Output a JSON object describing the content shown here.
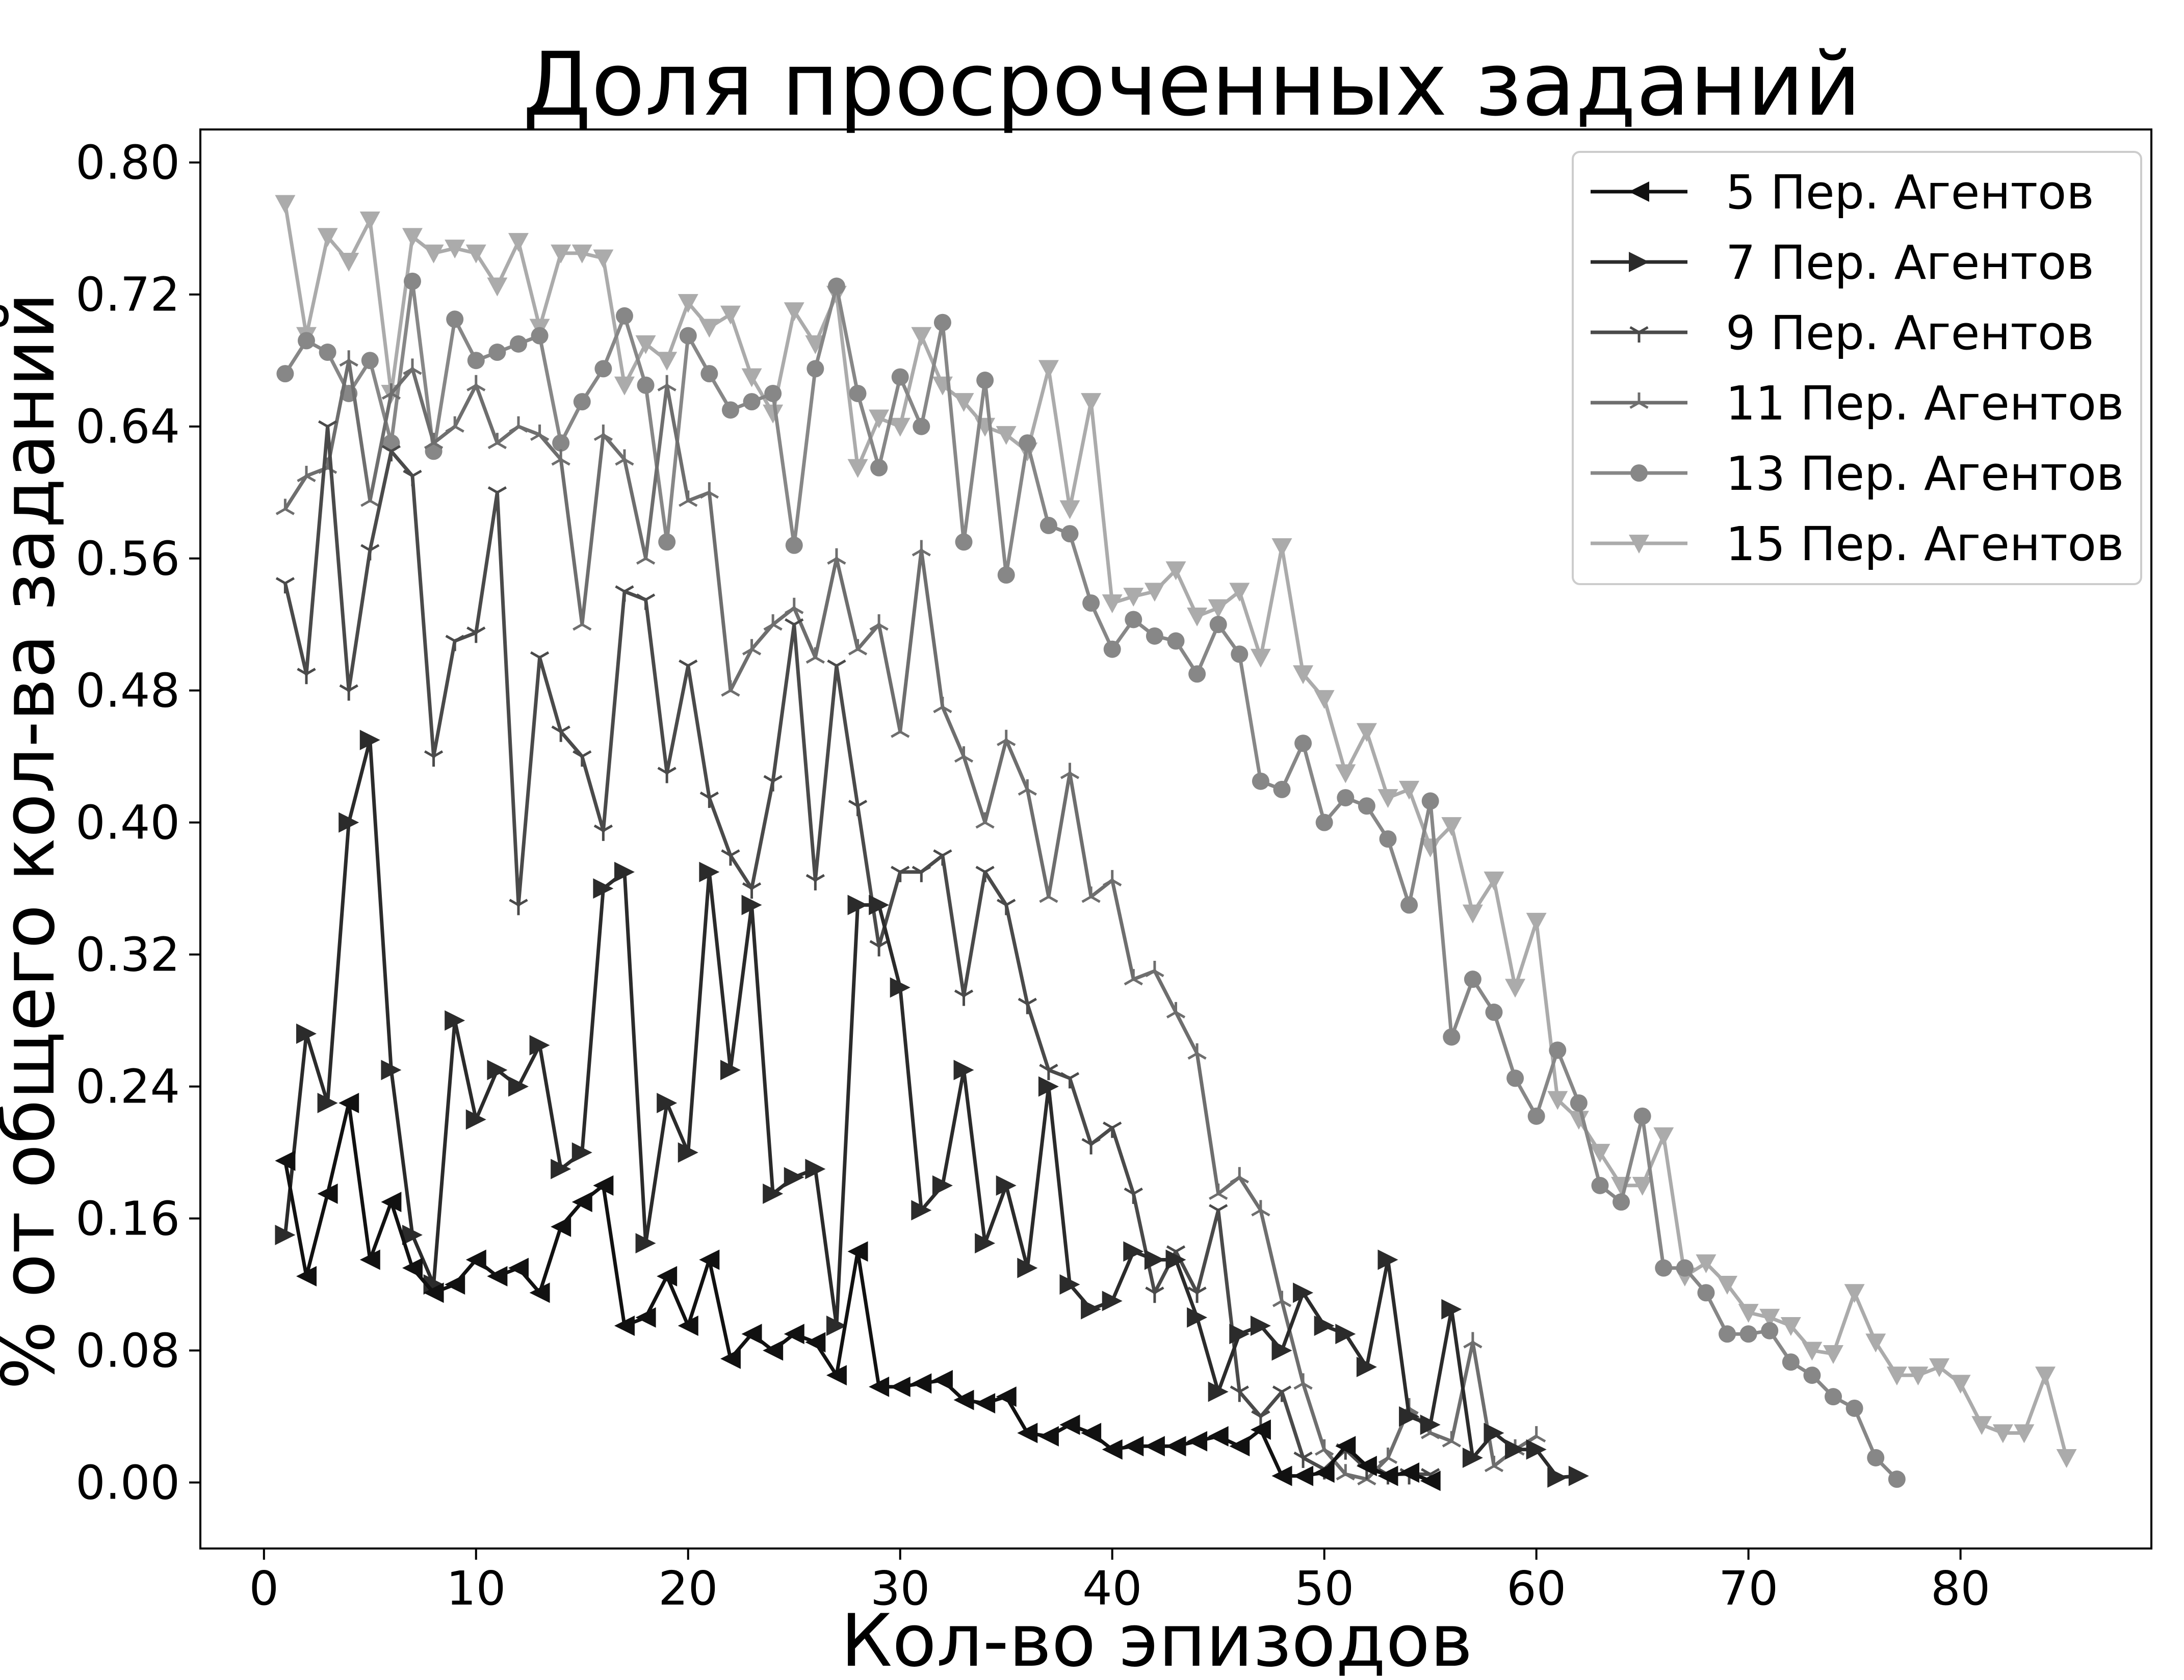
{
  "chart_data": {
    "type": "line",
    "title": "Доля просроченных заданий",
    "xlabel": "Кол-во эпизодов",
    "ylabel": "% от общего кол-ва заданий",
    "xlim": [
      -3,
      89
    ],
    "ylim": [
      -0.04,
      0.82
    ],
    "xticks": [
      0,
      10,
      20,
      30,
      40,
      50,
      60,
      70,
      80
    ],
    "xtick_labels": [
      "0",
      "10",
      "20",
      "30",
      "40",
      "50",
      "60",
      "70",
      "80"
    ],
    "yticks": [
      0.0,
      0.08,
      0.16,
      0.24,
      0.32,
      0.4,
      0.48,
      0.56,
      0.64,
      0.72,
      0.8
    ],
    "ytick_labels": [
      "0.00",
      "0.08",
      "0.16",
      "0.24",
      "0.32",
      "0.40",
      "0.48",
      "0.56",
      "0.64",
      "0.72",
      "0.80"
    ],
    "grid": false,
    "legend_position": "top-right",
    "series": [
      {
        "name": "5 Пер. Агентов",
        "color": "#111111",
        "marker": "triangle-left",
        "x_start": 1,
        "values": [
          0.195,
          0.125,
          0.175,
          0.23,
          0.135,
          0.17,
          0.13,
          0.115,
          0.12,
          0.135,
          0.125,
          0.13,
          0.115,
          0.155,
          0.17,
          0.18,
          0.095,
          0.1,
          0.125,
          0.095,
          0.135,
          0.075,
          0.09,
          0.08,
          0.09,
          0.085,
          0.065,
          0.14,
          0.058,
          0.058,
          0.06,
          0.062,
          0.05,
          0.048,
          0.052,
          0.03,
          0.028,
          0.035,
          0.03,
          0.02,
          0.022,
          0.022,
          0.022,
          0.025,
          0.028,
          0.022,
          0.032,
          0.004,
          0.004,
          0.006,
          0.022,
          0.01,
          0.004,
          0.006,
          0.001
        ]
      },
      {
        "name": "7 Пер. Агентов",
        "color": "#2b2b2b",
        "marker": "triangle-right",
        "x_start": 1,
        "values": [
          0.15,
          0.272,
          0.23,
          0.4,
          0.45,
          0.25,
          0.15,
          0.12,
          0.28,
          0.22,
          0.25,
          0.24,
          0.265,
          0.19,
          0.2,
          0.36,
          0.37,
          0.145,
          0.23,
          0.2,
          0.37,
          0.25,
          0.35,
          0.175,
          0.185,
          0.19,
          0.095,
          0.35,
          0.35,
          0.3,
          0.165,
          0.18,
          0.25,
          0.145,
          0.18,
          0.13,
          0.24,
          0.12,
          0.105,
          0.11,
          0.14,
          0.135,
          0.135,
          0.1,
          0.055,
          0.09,
          0.095,
          0.08,
          0.115,
          0.095,
          0.09,
          0.07,
          0.135,
          0.04,
          0.035,
          0.105,
          0.015,
          0.03,
          0.02,
          0.02,
          0.003,
          0.004
        ]
      },
      {
        "name": "9 Пер. Агентов",
        "color": "#4a4a4a",
        "marker": "tri-down",
        "x_start": 1,
        "values": [
          0.545,
          0.49,
          0.64,
          0.48,
          0.565,
          0.625,
          0.61,
          0.44,
          0.51,
          0.515,
          0.6,
          0.35,
          0.5,
          0.455,
          0.44,
          0.395,
          0.54,
          0.535,
          0.43,
          0.495,
          0.415,
          0.38,
          0.36,
          0.425,
          0.52,
          0.365,
          0.495,
          0.41,
          0.325,
          0.37,
          0.37,
          0.38,
          0.295,
          0.37,
          0.35,
          0.29,
          0.25,
          0.245,
          0.205,
          0.215,
          0.175,
          0.115,
          0.14,
          0.115,
          0.165,
          0.055,
          0.04,
          0.055,
          0.015,
          0.008,
          0.02,
          0.008,
          0.005,
          0.005,
          0.005
        ]
      },
      {
        "name": "11 Пер. Агентов",
        "color": "#6e6e6e",
        "marker": "tri-up",
        "x_start": 1,
        "values": [
          0.59,
          0.61,
          0.615,
          0.68,
          0.595,
          0.66,
          0.675,
          0.63,
          0.64,
          0.665,
          0.63,
          0.64,
          0.635,
          0.62,
          0.52,
          0.635,
          0.62,
          0.56,
          0.665,
          0.595,
          0.6,
          0.48,
          0.505,
          0.52,
          0.53,
          0.5,
          0.56,
          0.505,
          0.52,
          0.455,
          0.565,
          0.47,
          0.44,
          0.4,
          0.45,
          0.42,
          0.355,
          0.43,
          0.355,
          0.365,
          0.305,
          0.31,
          0.285,
          0.26,
          0.175,
          0.185,
          0.165,
          0.11,
          0.06,
          0.02,
          0.005,
          0.002,
          0.015,
          0.045,
          0.03,
          0.025,
          0.085,
          0.01,
          0.02,
          0.028
        ]
      },
      {
        "name": "13 Пер. Агентов",
        "color": "#878787",
        "marker": "circle",
        "x_start": 1,
        "values": [
          0.672,
          0.692,
          0.685,
          0.66,
          0.68,
          0.63,
          0.728,
          0.625,
          0.705,
          0.68,
          0.685,
          0.69,
          0.695,
          0.63,
          0.655,
          0.675,
          0.707,
          0.665,
          0.57,
          0.695,
          0.672,
          0.65,
          0.655,
          0.66,
          0.568,
          0.675,
          0.725,
          0.66,
          0.615,
          0.67,
          0.64,
          0.703,
          0.57,
          0.668,
          0.55,
          0.63,
          0.58,
          0.575,
          0.533,
          0.505,
          0.523,
          0.513,
          0.51,
          0.49,
          0.52,
          0.502,
          0.425,
          0.42,
          0.448,
          0.4,
          0.415,
          0.41,
          0.39,
          0.35,
          0.413,
          0.27,
          0.305,
          0.285,
          0.245,
          0.222,
          0.262,
          0.23,
          0.18,
          0.17,
          0.222,
          0.13,
          0.13,
          0.115,
          0.09,
          0.09,
          0.092,
          0.073,
          0.065,
          0.052,
          0.045,
          0.015,
          0.002
        ]
      },
      {
        "name": "15 Пер. Агентов",
        "color": "#ababab",
        "marker": "triangle-down",
        "x_start": 1,
        "values": [
          0.775,
          0.695,
          0.755,
          0.74,
          0.765,
          0.66,
          0.755,
          0.745,
          0.748,
          0.745,
          0.725,
          0.752,
          0.7,
          0.745,
          0.745,
          0.742,
          0.665,
          0.69,
          0.68,
          0.715,
          0.7,
          0.708,
          0.67,
          0.648,
          0.71,
          0.69,
          0.72,
          0.615,
          0.645,
          0.64,
          0.695,
          0.665,
          0.655,
          0.64,
          0.635,
          0.625,
          0.675,
          0.59,
          0.655,
          0.533,
          0.537,
          0.54,
          0.553,
          0.525,
          0.53,
          0.54,
          0.5,
          0.567,
          0.49,
          0.475,
          0.43,
          0.455,
          0.415,
          0.42,
          0.385,
          0.398,
          0.345,
          0.365,
          0.3,
          0.34,
          0.232,
          0.22,
          0.2,
          0.18,
          0.18,
          0.21,
          0.125,
          0.133,
          0.12,
          0.103,
          0.1,
          0.095,
          0.08,
          0.078,
          0.115,
          0.085,
          0.065,
          0.065,
          0.07,
          0.06,
          0.035,
          0.03,
          0.03,
          0.065,
          0.015
        ]
      }
    ]
  }
}
